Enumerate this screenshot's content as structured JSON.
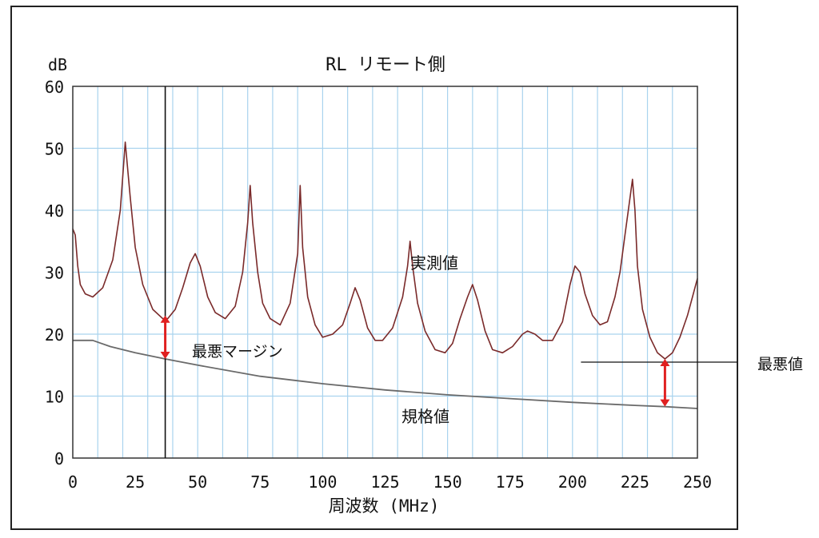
{
  "chart_data": {
    "type": "line",
    "title": "RL リモート側",
    "ylabel": "dB",
    "xlabel": "周波数 (MHz)",
    "xlim": [
      0,
      250
    ],
    "ylim": [
      0,
      60
    ],
    "x_ticks": [
      0,
      25,
      50,
      75,
      100,
      125,
      150,
      175,
      200,
      225,
      250
    ],
    "y_ticks": [
      0,
      10,
      20,
      30,
      40,
      50,
      60
    ],
    "grid": true,
    "series": [
      {
        "name": "実測値",
        "color": "#7a2a2a",
        "x": [
          0,
          1,
          2,
          3,
          5,
          8,
          12,
          16,
          19,
          21,
          23,
          25,
          28,
          32,
          36,
          38,
          41,
          44,
          47,
          49,
          51,
          54,
          57,
          61,
          65,
          68,
          70,
          71,
          72,
          74,
          76,
          79,
          83,
          87,
          90,
          91,
          92,
          94,
          97,
          100,
          104,
          108,
          111,
          113,
          115,
          118,
          121,
          124,
          128,
          132,
          134,
          135,
          136,
          138,
          141,
          145,
          149,
          152,
          155,
          158,
          160,
          162,
          165,
          168,
          172,
          176,
          180,
          182,
          185,
          188,
          192,
          196,
          199,
          201,
          203,
          205,
          208,
          211,
          214,
          217,
          219,
          221,
          223,
          224,
          225,
          226,
          228,
          231,
          234,
          237,
          240,
          243,
          246,
          248,
          250
        ],
        "values": [
          37,
          36,
          31,
          28,
          26.5,
          26,
          27.5,
          32,
          40,
          51,
          42,
          34,
          28,
          24,
          22.5,
          22.5,
          24,
          27.5,
          31.5,
          33,
          31,
          26,
          23.5,
          22.5,
          24.5,
          30,
          38,
          44,
          38,
          30,
          25,
          22.5,
          21.5,
          25,
          33,
          44,
          34,
          26,
          21.5,
          19.5,
          20,
          21.5,
          25,
          27.5,
          25.5,
          21,
          19,
          19,
          21,
          26,
          31,
          35,
          31,
          25,
          20.5,
          17.5,
          17,
          18.5,
          22.5,
          26,
          28,
          25.5,
          20.5,
          17.5,
          17,
          18,
          20,
          20.5,
          20,
          19,
          19,
          22,
          28,
          31,
          30,
          26.5,
          23,
          21.5,
          22,
          26,
          30,
          36,
          42,
          45,
          40,
          31,
          24,
          19.5,
          17,
          16,
          17,
          19.5,
          23,
          26,
          29
        ]
      },
      {
        "name": "規格値",
        "color": "#6a6a6a",
        "x": [
          0,
          8,
          15,
          25,
          37,
          50,
          75,
          100,
          125,
          150,
          175,
          200,
          225,
          237,
          250
        ],
        "values": [
          19,
          19,
          18,
          17,
          16,
          15,
          13.2,
          12,
          11,
          10.2,
          9.6,
          9,
          8.5,
          8.3,
          8
        ]
      }
    ],
    "annotations": {
      "measured_label": "実測値",
      "spec_label": "規格値",
      "worst_margin_label": "最悪マージン",
      "worst_value_label": "最悪値",
      "worst_margin_marker": {
        "x": 37,
        "y_from": 16,
        "y_to": 23
      },
      "worst_value_marker": {
        "x": 237,
        "y_from": 8.3,
        "y_to": 16
      },
      "marker_color": "#e02020"
    }
  }
}
